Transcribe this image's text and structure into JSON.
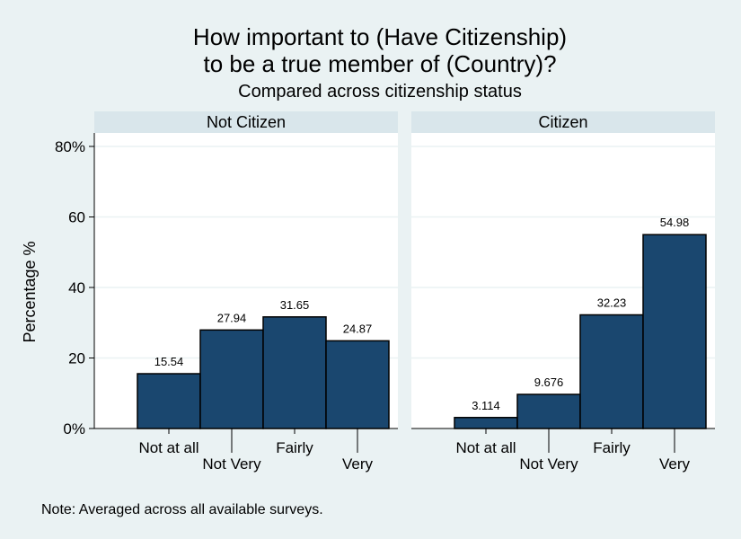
{
  "chart_data": {
    "type": "bar",
    "title": "How important to (Have Citizenship)",
    "title_line2": "to be a true member of (Country)?",
    "subtitle": "Compared across citizenship status",
    "ylabel": "Percentage %",
    "ylim": [
      0,
      80
    ],
    "yticks": [
      "0%",
      "20",
      "40",
      "60",
      "80%"
    ],
    "ytick_values": [
      0,
      20,
      40,
      60,
      80
    ],
    "categories": [
      "Not at all",
      "Not Very",
      "Fairly",
      "Very"
    ],
    "bar_color": "#1a476f",
    "panel_background": "#ffffff",
    "strip_color": "#d9e6eb",
    "grid_color": "#eaf2f3",
    "grid": true,
    "panels": [
      {
        "name": "Not Citizen",
        "values": [
          15.54,
          27.94,
          31.65,
          24.87
        ],
        "labels": [
          "15.54",
          "27.94",
          "31.65",
          "24.87"
        ]
      },
      {
        "name": "Citizen",
        "values": [
          3.114,
          9.676,
          32.23,
          54.98
        ],
        "labels": [
          "3.114",
          "9.676",
          "32.23",
          "54.98"
        ]
      }
    ],
    "note": "Note: Averaged across all available surveys."
  }
}
